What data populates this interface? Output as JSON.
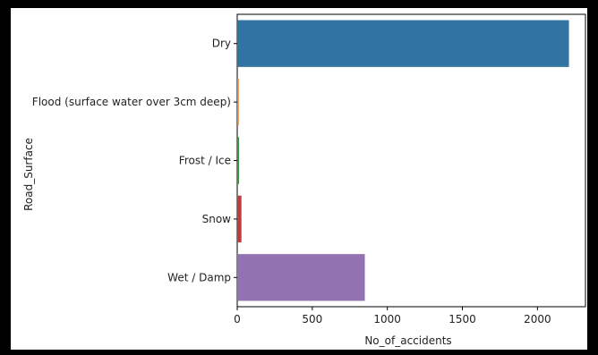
{
  "chart_data": {
    "type": "bar",
    "orientation": "horizontal",
    "categories": [
      "Dry",
      "Flood (surface water over 3cm deep)",
      "Frost / Ice",
      "Snow",
      "Wet / Damp"
    ],
    "values": [
      2210,
      10,
      12,
      28,
      850
    ],
    "colors": [
      "#3274a1",
      "#e1812c",
      "#3a923a",
      "#c03d3e",
      "#9372b2"
    ],
    "xlabel": "No_of_accidents",
    "ylabel": "Road_Surface",
    "xticks": [
      0,
      500,
      1000,
      1500,
      2000
    ],
    "xlim": [
      0,
      2320
    ],
    "grid": false,
    "legend": false
  }
}
